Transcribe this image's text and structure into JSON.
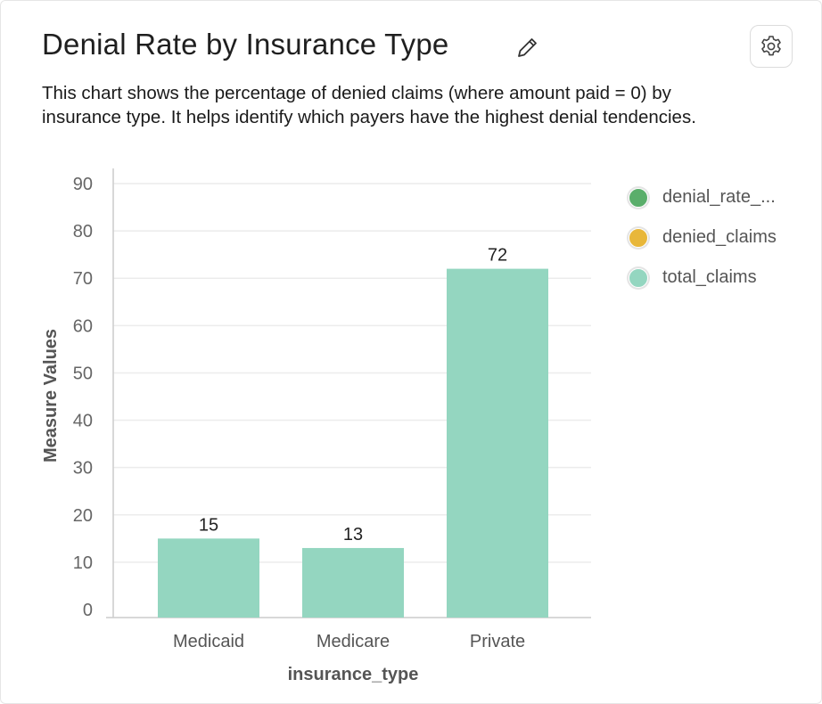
{
  "header": {
    "title": "Denial Rate by Insurance Type",
    "description": "This chart shows the percentage of denied claims (where amount paid = 0) by insurance type. It helps identify which payers have the highest denial tendencies.",
    "edit_icon": "pencil-icon",
    "settings_icon": "gear-icon"
  },
  "legend": {
    "items": [
      {
        "label": "denial_rate_...",
        "color": "#5aae6b"
      },
      {
        "label": "denied_claims",
        "color": "#e8b73a"
      },
      {
        "label": "total_claims",
        "color": "#94d6c0"
      }
    ]
  },
  "colors": {
    "bar": "#94d6c0",
    "grid": "#ececec",
    "axis": "#cccccc"
  },
  "chart_data": {
    "type": "bar",
    "categories": [
      "Medicaid",
      "Medicare",
      "Private"
    ],
    "values": [
      15,
      13,
      72
    ],
    "data_labels": [
      "15",
      "13",
      "72"
    ],
    "xlabel": "insurance_type",
    "ylabel": "Measure Values",
    "ylim": [
      0,
      90
    ],
    "yticks": [
      0,
      10,
      20,
      30,
      40,
      50,
      60,
      70,
      80,
      90
    ],
    "grid": true,
    "legend_position": "right"
  }
}
